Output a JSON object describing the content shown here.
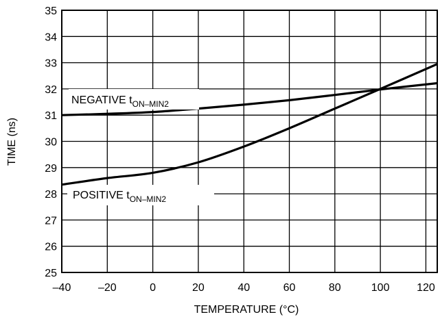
{
  "chart_data": {
    "type": "line",
    "xlabel": "TEMPERATURE (°C)",
    "ylabel": "TIME (ns)",
    "xlim": [
      -40,
      125
    ],
    "ylim": [
      25,
      35
    ],
    "x_ticks": [
      -40,
      -20,
      0,
      20,
      40,
      60,
      80,
      100,
      120
    ],
    "y_ticks": [
      25,
      26,
      27,
      28,
      29,
      30,
      31,
      32,
      33,
      34,
      35
    ],
    "x_tick_labels": [
      "–40",
      "–20",
      "0",
      "20",
      "40",
      "60",
      "80",
      "100",
      "120"
    ],
    "grid": true,
    "series": [
      {
        "name": "NEGATIVE tON–MIN2",
        "name_main": "NEGATIVE t",
        "name_sub": "ON–MIN2",
        "x": [
          -40,
          -20,
          0,
          20,
          40,
          60,
          80,
          100,
          125
        ],
        "values": [
          31.0,
          31.05,
          31.12,
          31.25,
          31.4,
          31.57,
          31.77,
          31.98,
          32.22
        ]
      },
      {
        "name": "POSITIVE tON–MIN2",
        "name_main": "POSITIVE t",
        "name_sub": "ON–MIN2",
        "x": [
          -40,
          -20,
          0,
          20,
          40,
          60,
          80,
          100,
          125
        ],
        "values": [
          28.35,
          28.6,
          28.8,
          29.2,
          29.8,
          30.5,
          31.25,
          32.0,
          32.95
        ]
      }
    ]
  }
}
